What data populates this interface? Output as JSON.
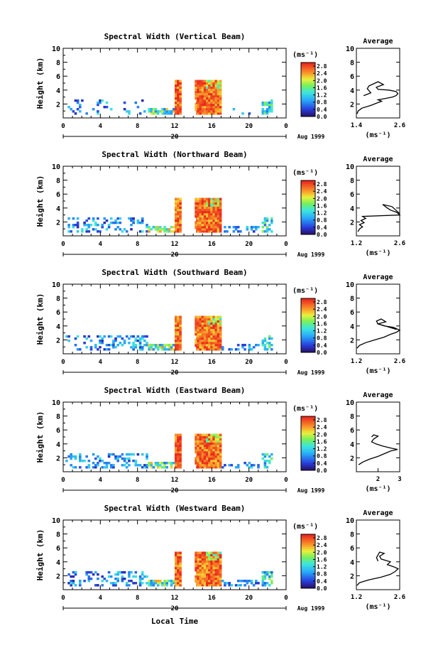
{
  "figure": {
    "xlabel": "Local Time"
  },
  "chart_data": [
    {
      "type": "heatmap",
      "title": "Spectral Width (Vertical Beam)",
      "ylabel": "Height (km)",
      "yticks": [
        "2",
        "4",
        "6",
        "8",
        "10"
      ],
      "ylim": [
        0,
        10
      ],
      "xticks": [
        "0",
        "4",
        "8",
        "12",
        "16",
        "20",
        "0"
      ],
      "xlim": [
        0,
        24
      ],
      "date_label": "20",
      "month_label": "Aug 1999",
      "colorbar": {
        "unit": "(ms⁻¹)",
        "ticks": [
          "0.0",
          "0.4",
          "0.8",
          "1.2",
          "1.6",
          "2.0",
          "2.4",
          "2.8"
        ],
        "range": [
          0,
          3.0
        ]
      },
      "average": {
        "title": "Average",
        "xlabel": "(ms⁻¹)",
        "xticks": [
          "1.4",
          "2.6"
        ],
        "xlim": [
          1.4,
          2.6
        ],
        "yticks": [
          "2",
          "4",
          "6",
          "8",
          "10"
        ],
        "ylim": [
          0,
          10
        ],
        "profile": [
          [
            1.42,
            0.6
          ],
          [
            1.45,
            1.0
          ],
          [
            1.55,
            1.4
          ],
          [
            1.8,
            1.8
          ],
          [
            2.0,
            2.2
          ],
          [
            2.1,
            2.4
          ],
          [
            2.0,
            2.6
          ],
          [
            2.2,
            2.8
          ],
          [
            2.4,
            3.0
          ],
          [
            2.5,
            3.2
          ],
          [
            2.55,
            3.5
          ],
          [
            2.5,
            3.8
          ],
          [
            2.3,
            4.0
          ],
          [
            2.0,
            4.1
          ],
          [
            1.95,
            4.4
          ],
          [
            2.15,
            4.8
          ],
          [
            2.0,
            5.2
          ],
          [
            1.75,
            4.6
          ],
          [
            1.7,
            4.2
          ],
          [
            1.8,
            3.6
          ],
          [
            1.6,
            3.2
          ]
        ]
      }
    },
    {
      "type": "heatmap",
      "title": "Spectral Width (Northward Beam)",
      "ylabel": "Height (km)",
      "yticks": [
        "2",
        "4",
        "6",
        "8",
        "10"
      ],
      "ylim": [
        0,
        10
      ],
      "xticks": [
        "0",
        "4",
        "8",
        "12",
        "16",
        "20",
        "0"
      ],
      "xlim": [
        0,
        24
      ],
      "date_label": "20",
      "month_label": "Aug 1999",
      "colorbar": {
        "unit": "(ms⁻¹)",
        "ticks": [
          "0.0",
          "0.4",
          "0.8",
          "1.2",
          "1.6",
          "2.0",
          "2.4",
          "2.8"
        ],
        "range": [
          0,
          3.0
        ]
      },
      "average": {
        "title": "Average",
        "xlabel": "(ms⁻¹)",
        "xticks": [
          "1.2",
          "2.6"
        ],
        "xlim": [
          1.2,
          2.6
        ],
        "yticks": [
          "2",
          "4",
          "6",
          "8",
          "10"
        ],
        "ylim": [
          0,
          10
        ],
        "profile": [
          [
            1.25,
            0.6
          ],
          [
            1.3,
            1.0
          ],
          [
            1.4,
            1.3
          ],
          [
            1.3,
            1.6
          ],
          [
            1.45,
            1.9
          ],
          [
            1.35,
            2.2
          ],
          [
            1.5,
            2.5
          ],
          [
            1.4,
            2.8
          ],
          [
            2.6,
            3.0
          ],
          [
            2.5,
            3.4
          ],
          [
            2.3,
            3.7
          ],
          [
            2.2,
            4.0
          ],
          [
            2.05,
            4.5
          ],
          [
            2.35,
            4.2
          ],
          [
            2.5,
            3.6
          ],
          [
            2.6,
            3.2
          ]
        ]
      }
    },
    {
      "type": "heatmap",
      "title": "Spectral Width (Southward Beam)",
      "ylabel": "Height (km)",
      "yticks": [
        "2",
        "4",
        "6",
        "8",
        "10"
      ],
      "ylim": [
        0,
        10
      ],
      "xticks": [
        "0",
        "4",
        "8",
        "12",
        "16",
        "20",
        "0"
      ],
      "xlim": [
        0,
        24
      ],
      "date_label": "20",
      "month_label": "Aug 1999",
      "colorbar": {
        "unit": "(ms⁻¹)",
        "ticks": [
          "0.0",
          "0.4",
          "0.8",
          "1.2",
          "1.6",
          "2.0",
          "2.4",
          "2.8"
        ],
        "range": [
          0,
          3.0
        ]
      },
      "average": {
        "title": "Average",
        "xlabel": "(ms⁻¹)",
        "xticks": [
          "1.2",
          "2.6"
        ],
        "xlim": [
          1.2,
          2.6
        ],
        "yticks": [
          "2",
          "4",
          "6",
          "8",
          "10"
        ],
        "ylim": [
          0,
          10
        ],
        "profile": [
          [
            1.22,
            0.8
          ],
          [
            1.3,
            1.2
          ],
          [
            1.5,
            1.6
          ],
          [
            1.8,
            2.0
          ],
          [
            2.1,
            2.4
          ],
          [
            2.3,
            2.8
          ],
          [
            2.5,
            3.1
          ],
          [
            2.6,
            3.4
          ],
          [
            2.4,
            3.8
          ],
          [
            2.1,
            4.0
          ],
          [
            1.9,
            4.3
          ],
          [
            2.15,
            4.6
          ],
          [
            2.0,
            5.0
          ],
          [
            1.85,
            4.7
          ],
          [
            1.9,
            4.3
          ],
          [
            2.2,
            3.9
          ],
          [
            2.5,
            3.5
          ]
        ]
      }
    },
    {
      "type": "heatmap",
      "title": "Spectral Width (Eastward Beam)",
      "ylabel": "Height (km)",
      "yticks": [
        "2",
        "4",
        "6",
        "8",
        "10"
      ],
      "ylim": [
        0,
        10
      ],
      "xticks": [
        "0",
        "4",
        "8",
        "12",
        "16",
        "20",
        "0"
      ],
      "xlim": [
        0,
        24
      ],
      "date_label": "20",
      "month_label": "Aug 1999",
      "colorbar": {
        "unit": "(ms⁻¹)",
        "ticks": [
          "0.0",
          "0.4",
          "0.8",
          "1.2",
          "1.6",
          "2.0",
          "2.4",
          "2.8"
        ],
        "range": [
          0,
          3.0
        ]
      },
      "average": {
        "title": "Average",
        "xlabel": "(ms⁻¹)",
        "xticks": [
          "2",
          "3"
        ],
        "xlim": [
          1.0,
          3.0
        ],
        "yticks": [
          "2",
          "4",
          "6",
          "8",
          "10"
        ],
        "ylim": [
          0,
          10
        ],
        "profile": [
          [
            1.1,
            1.0
          ],
          [
            1.3,
            1.4
          ],
          [
            1.6,
            1.8
          ],
          [
            2.0,
            2.2
          ],
          [
            2.3,
            2.6
          ],
          [
            2.6,
            3.0
          ],
          [
            2.9,
            3.2
          ],
          [
            2.6,
            3.4
          ],
          [
            2.2,
            3.7
          ],
          [
            1.9,
            4.0
          ],
          [
            1.7,
            4.3
          ],
          [
            1.8,
            4.7
          ],
          [
            2.0,
            5.1
          ],
          [
            1.8,
            5.3
          ],
          [
            1.7,
            5.0
          ]
        ]
      }
    },
    {
      "type": "heatmap",
      "title": "Spectral Width (Westward Beam)",
      "ylabel": "Height (km)",
      "yticks": [
        "2",
        "4",
        "6",
        "8",
        "10"
      ],
      "ylim": [
        0,
        10
      ],
      "xticks": [
        "0",
        "4",
        "8",
        "12",
        "16",
        "20",
        "0"
      ],
      "xlim": [
        0,
        24
      ],
      "date_label": "20",
      "month_label": "Aug 1999",
      "colorbar": {
        "unit": "(ms⁻¹)",
        "ticks": [
          "0.0",
          "0.4",
          "0.8",
          "1.2",
          "1.6",
          "2.0",
          "2.4",
          "2.8"
        ],
        "range": [
          0,
          3.0
        ]
      },
      "average": {
        "title": "Average",
        "xlabel": "(ms⁻¹)",
        "xticks": [
          "1.2",
          "2.6"
        ],
        "xlim": [
          1.2,
          2.6
        ],
        "yticks": [
          "2",
          "4",
          "6",
          "8",
          "10"
        ],
        "ylim": [
          0,
          10
        ],
        "profile": [
          [
            1.22,
            0.6
          ],
          [
            1.3,
            1.0
          ],
          [
            1.6,
            1.4
          ],
          [
            2.0,
            1.8
          ],
          [
            2.3,
            2.2
          ],
          [
            2.45,
            2.6
          ],
          [
            2.55,
            3.0
          ],
          [
            2.4,
            3.3
          ],
          [
            2.2,
            3.6
          ],
          [
            2.3,
            4.0
          ],
          [
            2.0,
            4.4
          ],
          [
            1.95,
            4.8
          ],
          [
            2.1,
            5.2
          ],
          [
            1.95,
            5.4
          ],
          [
            1.85,
            4.6
          ],
          [
            1.9,
            4.1
          ]
        ]
      }
    }
  ]
}
